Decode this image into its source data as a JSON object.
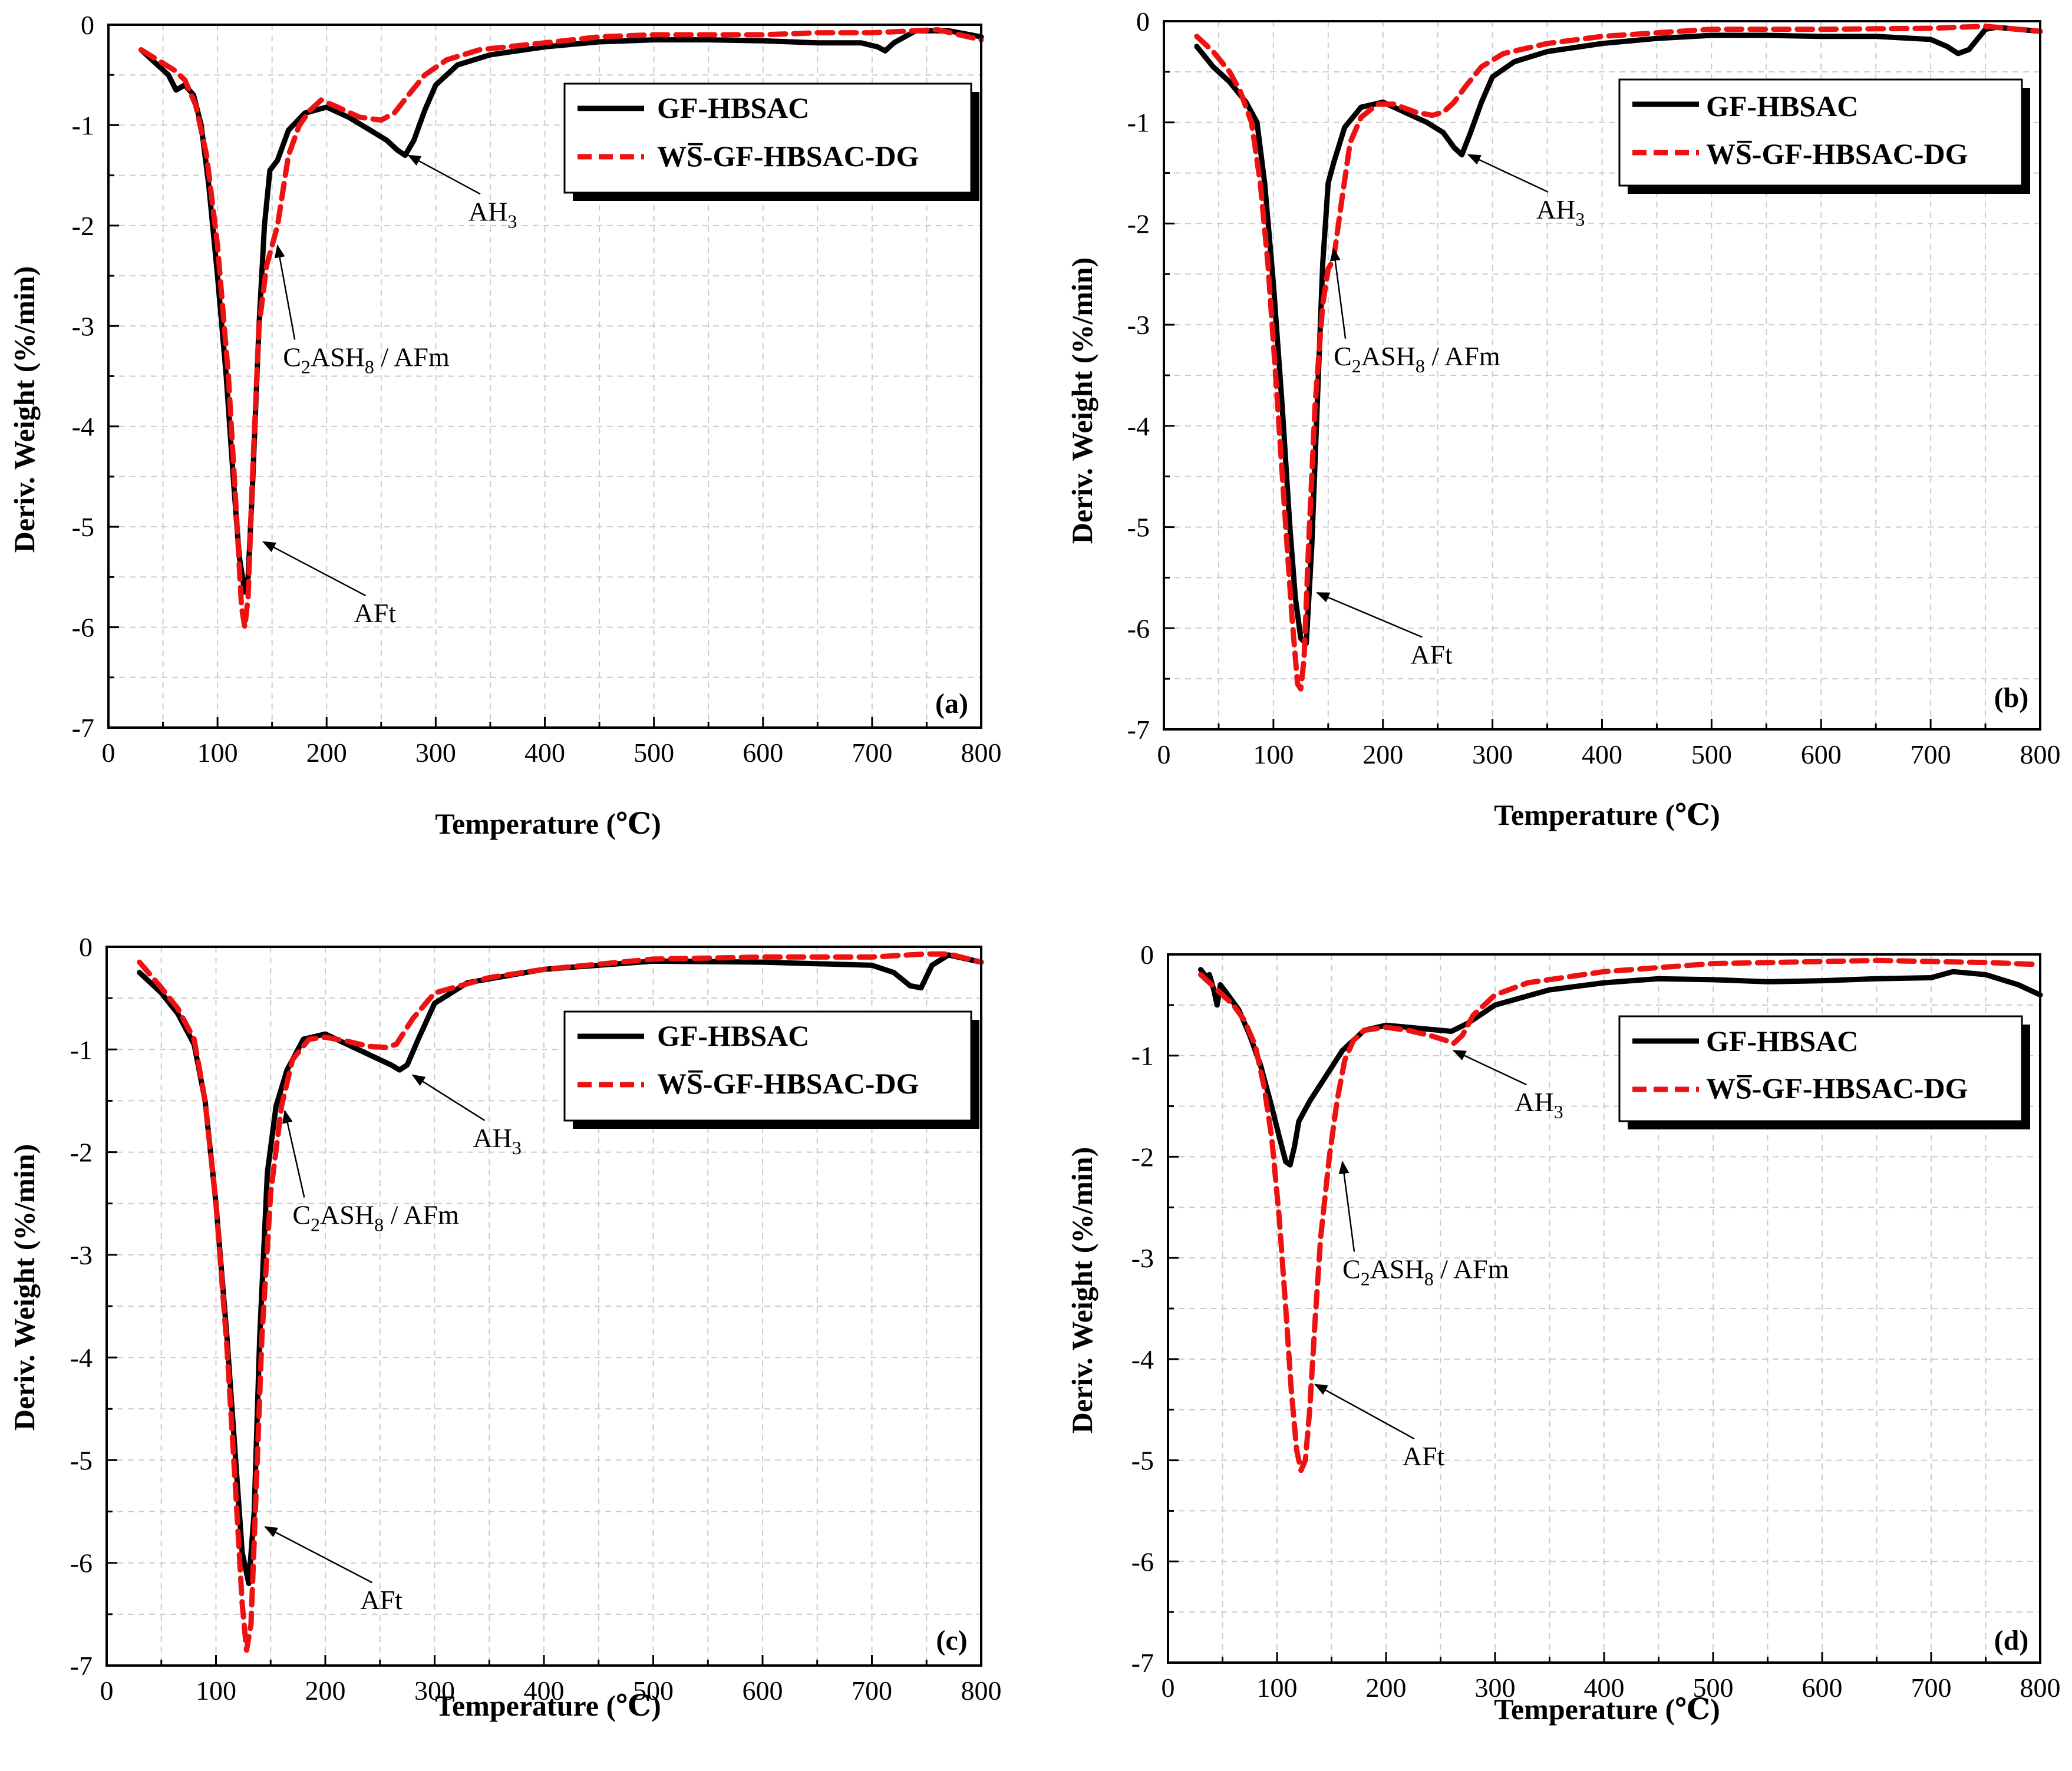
{
  "figure": {
    "legend_labels": [
      "GF-HBSAC",
      "WS̅-GF-HBSAC-DG"
    ],
    "colors": {
      "gf_hbsac": "#000000",
      "ws_gf_hbsac_dg": "#ee1111",
      "grid": "#cccccc"
    }
  },
  "chart_data": [
    {
      "type": "line",
      "panel": "(a)",
      "xlabel": "Temperature (℃)",
      "ylabel": "Deriv. Weight (%/min)",
      "xlim": [
        0,
        800
      ],
      "ylim": [
        -7,
        0
      ],
      "xticks": [
        "0",
        "100",
        "200",
        "300",
        "400",
        "500",
        "600",
        "700",
        "800"
      ],
      "yticks": [
        "0",
        "-1",
        "-2",
        "-3",
        "-4",
        "-5",
        "-6",
        "-7"
      ],
      "grid": true,
      "legend": "top-right",
      "series": [
        {
          "name": "GF-HBSAC",
          "style": "solid",
          "x": [
            30,
            45,
            55,
            62,
            70,
            78,
            85,
            92,
            100,
            108,
            115,
            120,
            125,
            128,
            132,
            138,
            143,
            148,
            155,
            165,
            180,
            200,
            220,
            240,
            255,
            265,
            272,
            280,
            290,
            300,
            320,
            350,
            400,
            450,
            500,
            550,
            600,
            650,
            690,
            705,
            712,
            720,
            740,
            770,
            800
          ],
          "y": [
            -0.25,
            -0.4,
            -0.5,
            -0.65,
            -0.6,
            -0.7,
            -1.0,
            -1.6,
            -2.5,
            -3.5,
            -4.6,
            -5.3,
            -5.65,
            -5.5,
            -4.6,
            -3.0,
            -2.0,
            -1.45,
            -1.35,
            -1.05,
            -0.88,
            -0.82,
            -0.92,
            -1.05,
            -1.15,
            -1.25,
            -1.3,
            -1.15,
            -0.85,
            -0.6,
            -0.4,
            -0.3,
            -0.22,
            -0.17,
            -0.15,
            -0.15,
            -0.16,
            -0.18,
            -0.18,
            -0.22,
            -0.26,
            -0.18,
            -0.06,
            -0.06,
            -0.12
          ]
        },
        {
          "name": "WS̅-GF-HBSAC-DG",
          "style": "dashed",
          "x": [
            30,
            45,
            60,
            70,
            80,
            90,
            100,
            110,
            118,
            122,
            125,
            128,
            132,
            138,
            145,
            150,
            155,
            165,
            175,
            185,
            195,
            210,
            230,
            250,
            262,
            275,
            290,
            310,
            340,
            400,
            450,
            500,
            550,
            600,
            650,
            700,
            740,
            760,
            800
          ],
          "y": [
            -0.25,
            -0.35,
            -0.45,
            -0.55,
            -0.8,
            -1.3,
            -2.2,
            -3.5,
            -5.0,
            -5.8,
            -6.0,
            -5.7,
            -4.5,
            -3.0,
            -2.4,
            -2.2,
            -2.0,
            -1.3,
            -1.0,
            -0.85,
            -0.75,
            -0.82,
            -0.92,
            -0.95,
            -0.88,
            -0.7,
            -0.5,
            -0.35,
            -0.25,
            -0.18,
            -0.12,
            -0.1,
            -0.1,
            -0.1,
            -0.08,
            -0.08,
            -0.06,
            -0.05,
            -0.15
          ]
        }
      ],
      "annotations": [
        {
          "label": "AH",
          "sub": "3",
          "rest": "",
          "label_at": [
            330,
            -1.95
          ],
          "point": [
            275,
            -1.3
          ]
        },
        {
          "label": "C",
          "sub": "2",
          "rest": "ASH",
          "sub2": "8",
          "rest2": "/  AFm",
          "label_at": [
            160,
            -3.4
          ],
          "point": [
            155,
            -2.2
          ]
        },
        {
          "label": "AFt",
          "sub": "",
          "rest": "",
          "label_at": [
            225,
            -5.95
          ],
          "point": [
            142,
            -5.15
          ]
        }
      ]
    },
    {
      "type": "line",
      "panel": "(b)",
      "xlabel": "Temperature (℃)",
      "ylabel": "Deriv. Weight (%/min)",
      "xlim": [
        0,
        800
      ],
      "ylim": [
        -7,
        0
      ],
      "xticks": [
        "0",
        "100",
        "200",
        "300",
        "400",
        "500",
        "600",
        "700",
        "800"
      ],
      "yticks": [
        "0",
        "-1",
        "-2",
        "-3",
        "-4",
        "-5",
        "-6",
        "-7"
      ],
      "grid": true,
      "legend": "top-right",
      "series": [
        {
          "name": "GF-HBSAC",
          "style": "solid",
          "x": [
            30,
            45,
            60,
            75,
            85,
            92,
            100,
            108,
            115,
            120,
            125,
            130,
            135,
            140,
            145,
            150,
            155,
            165,
            180,
            200,
            220,
            240,
            255,
            265,
            272,
            280,
            290,
            300,
            320,
            350,
            400,
            450,
            500,
            550,
            600,
            650,
            700,
            715,
            725,
            735,
            750,
            760,
            800
          ],
          "y": [
            -0.25,
            -0.45,
            -0.6,
            -0.8,
            -1.0,
            -1.6,
            -2.6,
            -3.8,
            -5.0,
            -5.7,
            -6.1,
            -6.15,
            -5.2,
            -3.8,
            -2.4,
            -1.6,
            -1.4,
            -1.05,
            -0.85,
            -0.8,
            -0.9,
            -1.0,
            -1.1,
            -1.25,
            -1.32,
            -1.1,
            -0.8,
            -0.55,
            -0.4,
            -0.3,
            -0.22,
            -0.17,
            -0.14,
            -0.14,
            -0.15,
            -0.15,
            -0.18,
            -0.25,
            -0.32,
            -0.28,
            -0.08,
            -0.06,
            -0.1
          ]
        },
        {
          "name": "WS̅-GF-HBSAC-DG",
          "style": "dashed",
          "x": [
            30,
            45,
            60,
            70,
            80,
            88,
            95,
            102,
            110,
            117,
            122,
            125,
            128,
            132,
            138,
            145,
            150,
            155,
            162,
            170,
            180,
            195,
            210,
            230,
            245,
            255,
            265,
            275,
            290,
            310,
            350,
            400,
            500,
            600,
            700,
            750,
            800
          ],
          "y": [
            -0.15,
            -0.3,
            -0.5,
            -0.7,
            -1.0,
            -1.6,
            -2.4,
            -3.5,
            -4.8,
            -5.9,
            -6.55,
            -6.6,
            -6.3,
            -5.2,
            -3.8,
            -2.8,
            -2.45,
            -2.35,
            -1.8,
            -1.2,
            -0.95,
            -0.82,
            -0.82,
            -0.9,
            -0.93,
            -0.9,
            -0.8,
            -0.65,
            -0.45,
            -0.32,
            -0.22,
            -0.15,
            -0.08,
            -0.08,
            -0.07,
            -0.05,
            -0.1
          ]
        }
      ],
      "annotations": [
        {
          "label": "AH",
          "sub": "3",
          "rest": "",
          "label_at": [
            340,
            -1.95
          ],
          "point": [
            278,
            -1.32
          ]
        },
        {
          "label": "C",
          "sub": "2",
          "rest": "ASH",
          "sub2": "8",
          "rest2": "/  AFm",
          "label_at": [
            155,
            -3.4
          ],
          "point": [
            155,
            -2.25
          ]
        },
        {
          "label": "AFt",
          "sub": "",
          "rest": "",
          "label_at": [
            225,
            -6.35
          ],
          "point": [
            140,
            -5.65
          ]
        }
      ]
    },
    {
      "type": "line",
      "panel": "(c)",
      "xlabel": "Temperature (℃)",
      "ylabel": "Deriv. Weight (%/min)",
      "xlim": [
        0,
        800
      ],
      "ylim": [
        -7,
        0
      ],
      "xticks": [
        "0",
        "100",
        "200",
        "300",
        "400",
        "500",
        "600",
        "700",
        "800"
      ],
      "yticks": [
        "0",
        "-1",
        "-2",
        "-3",
        "-4",
        "-5",
        "-6",
        "-7"
      ],
      "grid": true,
      "legend": "top-right",
      "series": [
        {
          "name": "GF-HBSAC",
          "style": "solid",
          "x": [
            30,
            50,
            65,
            80,
            90,
            100,
            110,
            118,
            124,
            130,
            135,
            140,
            147,
            155,
            165,
            180,
            200,
            220,
            240,
            260,
            268,
            275,
            285,
            300,
            330,
            400,
            500,
            600,
            700,
            720,
            735,
            745,
            755,
            770,
            800
          ],
          "y": [
            -0.25,
            -0.45,
            -0.65,
            -0.95,
            -1.5,
            -2.5,
            -3.8,
            -5.0,
            -5.9,
            -6.2,
            -5.5,
            -3.8,
            -2.2,
            -1.55,
            -1.2,
            -0.9,
            -0.85,
            -0.95,
            -1.05,
            -1.15,
            -1.2,
            -1.15,
            -0.9,
            -0.55,
            -0.35,
            -0.22,
            -0.14,
            -0.15,
            -0.18,
            -0.25,
            -0.38,
            -0.4,
            -0.18,
            -0.08,
            -0.15
          ]
        },
        {
          "name": "WS̅-GF-HBSAC-DG",
          "style": "dashed",
          "x": [
            30,
            50,
            65,
            80,
            90,
            100,
            110,
            118,
            124,
            128,
            132,
            136,
            142,
            150,
            160,
            170,
            185,
            200,
            220,
            240,
            255,
            265,
            280,
            300,
            350,
            400,
            500,
            600,
            700,
            750,
            770,
            800
          ],
          "y": [
            -0.15,
            -0.4,
            -0.6,
            -0.9,
            -1.5,
            -2.5,
            -3.9,
            -5.3,
            -6.4,
            -6.85,
            -6.6,
            -5.5,
            -3.8,
            -2.4,
            -1.55,
            -1.1,
            -0.9,
            -0.88,
            -0.92,
            -0.97,
            -0.98,
            -0.95,
            -0.7,
            -0.45,
            -0.3,
            -0.22,
            -0.12,
            -0.1,
            -0.1,
            -0.07,
            -0.07,
            -0.15
          ]
        }
      ],
      "annotations": [
        {
          "label": "AH",
          "sub": "3",
          "rest": "",
          "label_at": [
            335,
            -1.95
          ],
          "point": [
            280,
            -1.25
          ]
        },
        {
          "label": "C",
          "sub": "2",
          "rest": "ASH",
          "sub2": "8",
          "rest2": "/  AFm",
          "label_at": [
            170,
            -2.7
          ],
          "point": [
            163,
            -1.6
          ]
        },
        {
          "label": "AFt",
          "sub": "",
          "rest": "",
          "label_at": [
            232,
            -6.45
          ],
          "point": [
            145,
            -5.65
          ]
        }
      ]
    },
    {
      "type": "line",
      "panel": "(d)",
      "xlabel": "Temperature (℃)",
      "ylabel": "Deriv. Weight (%/min)",
      "xlim": [
        0,
        800
      ],
      "ylim": [
        -7,
        0
      ],
      "xticks": [
        "0",
        "100",
        "200",
        "300",
        "400",
        "500",
        "600",
        "700",
        "800"
      ],
      "yticks": [
        "0",
        "-1",
        "-2",
        "-3",
        "-4",
        "-5",
        "-6",
        "-7"
      ],
      "grid": true,
      "legend": "top-right",
      "series": [
        {
          "name": "GF-HBSAC",
          "style": "solid",
          "x": [
            30,
            35,
            38,
            42,
            45,
            48,
            55,
            65,
            75,
            85,
            95,
            102,
            108,
            112,
            116,
            120,
            130,
            145,
            160,
            180,
            200,
            220,
            240,
            260,
            275,
            300,
            350,
            400,
            450,
            500,
            550,
            600,
            650,
            700,
            720,
            750,
            780,
            800
          ],
          "y": [
            -0.15,
            -0.22,
            -0.2,
            -0.35,
            -0.5,
            -0.3,
            -0.4,
            -0.55,
            -0.8,
            -1.1,
            -1.5,
            -1.8,
            -2.05,
            -2.08,
            -1.9,
            -1.65,
            -1.45,
            -1.2,
            -0.95,
            -0.75,
            -0.7,
            -0.72,
            -0.74,
            -0.76,
            -0.68,
            -0.5,
            -0.35,
            -0.28,
            -0.24,
            -0.25,
            -0.27,
            -0.26,
            -0.24,
            -0.23,
            -0.17,
            -0.2,
            -0.3,
            -0.4
          ]
        },
        {
          "name": "WS̅-GF-HBSAC-DG",
          "style": "dashed",
          "x": [
            30,
            40,
            50,
            60,
            70,
            80,
            88,
            95,
            102,
            108,
            113,
            118,
            122,
            126,
            130,
            135,
            140,
            148,
            155,
            162,
            170,
            180,
            200,
            220,
            240,
            255,
            262,
            270,
            280,
            300,
            330,
            400,
            500,
            600,
            650,
            700,
            750,
            800
          ],
          "y": [
            -0.2,
            -0.3,
            -0.4,
            -0.5,
            -0.65,
            -0.9,
            -1.3,
            -1.8,
            -2.6,
            -3.5,
            -4.3,
            -4.9,
            -5.1,
            -5.0,
            -4.5,
            -3.6,
            -2.8,
            -2.0,
            -1.45,
            -1.05,
            -0.85,
            -0.75,
            -0.72,
            -0.75,
            -0.8,
            -0.85,
            -0.88,
            -0.8,
            -0.6,
            -0.4,
            -0.28,
            -0.17,
            -0.09,
            -0.07,
            -0.06,
            -0.07,
            -0.08,
            -0.1
          ]
        }
      ],
      "annotations": [
        {
          "label": "AH",
          "sub": "3",
          "rest": "",
          "label_at": [
            318,
            -1.55
          ],
          "point": [
            262,
            -0.95
          ]
        },
        {
          "label": "C",
          "sub": "2",
          "rest": "ASH",
          "sub2": "8",
          "rest2": "/  AFm",
          "label_at": [
            160,
            -3.2
          ],
          "point": [
            160,
            -2.05
          ]
        },
        {
          "label": "AFt",
          "sub": "",
          "rest": "",
          "label_at": [
            215,
            -5.05
          ],
          "point": [
            135,
            -4.25
          ]
        }
      ]
    }
  ]
}
